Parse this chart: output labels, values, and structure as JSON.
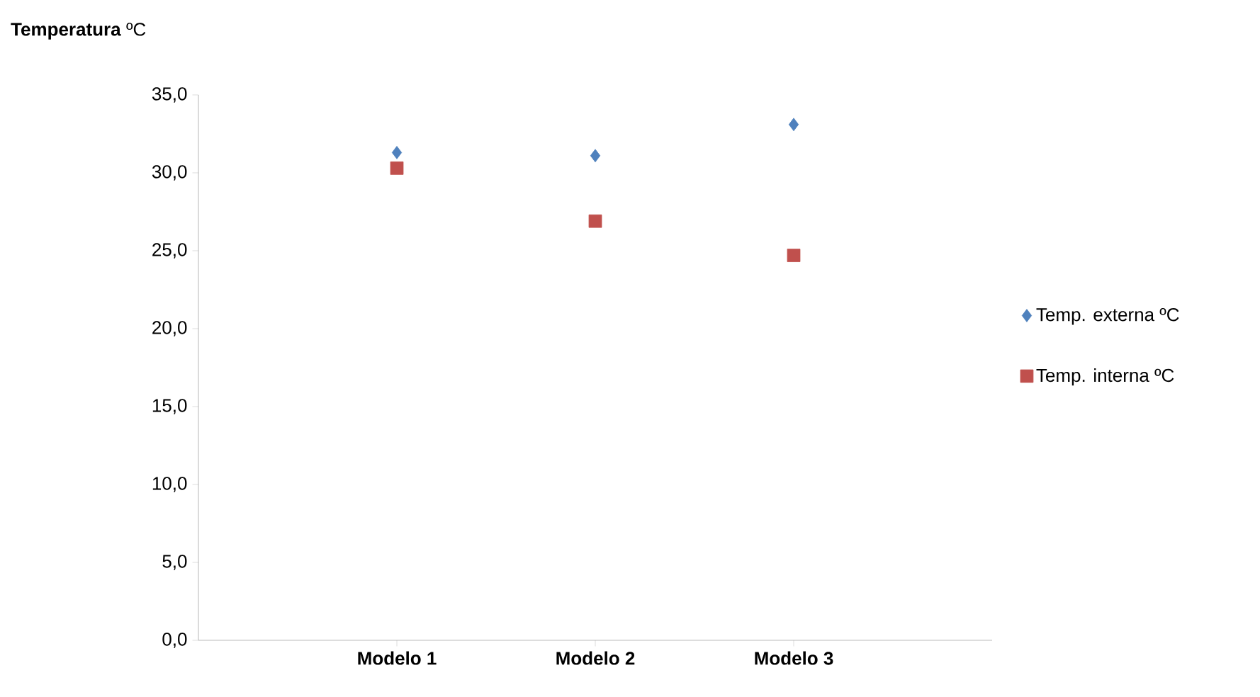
{
  "chart_data": {
    "type": "scatter",
    "ylabel": "**Temperatura** ºC",
    "categories": [
      "Modelo 1",
      "Modelo 2",
      "Modelo 3"
    ],
    "series": [
      {
        "name": "Temp. externa  ºC",
        "color": "#4f81bd",
        "marker": "diamond",
        "values": [
          31.3,
          31.1,
          33.1
        ]
      },
      {
        "name": "Temp. interna  ºC",
        "color": "#c0504d",
        "marker": "square",
        "values": [
          30.3,
          26.9,
          24.7
        ]
      }
    ],
    "ylim": [
      0,
      35
    ],
    "yticks": [
      {
        "value": 0,
        "label": "0,0"
      },
      {
        "value": 5,
        "label": "5,0"
      },
      {
        "value": 10,
        "label": "10,0"
      },
      {
        "value": 15,
        "label": "15,0"
      },
      {
        "value": 20,
        "label": "20,0"
      },
      {
        "value": 25,
        "label": "25,0"
      },
      {
        "value": 30,
        "label": "30,0"
      },
      {
        "value": 35,
        "label": "35,0"
      }
    ],
    "grid": false,
    "legend": "right"
  }
}
